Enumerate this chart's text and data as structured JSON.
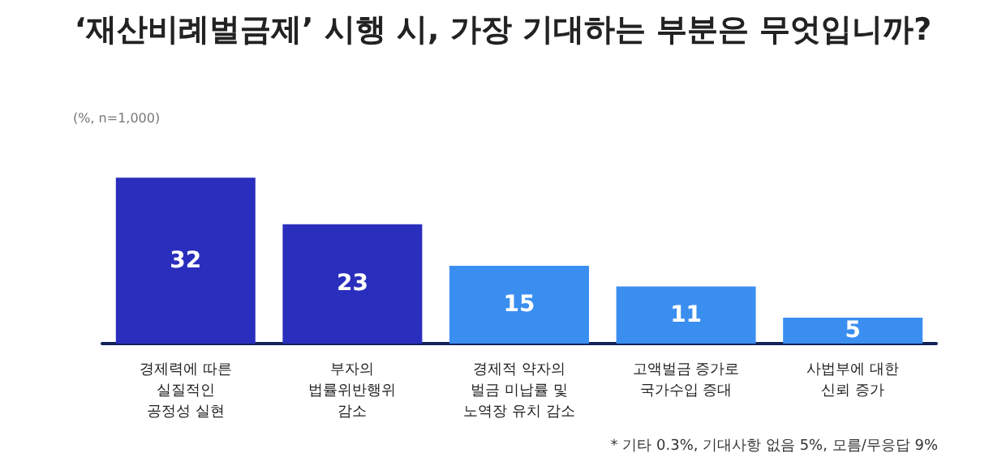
{
  "chart_data": {
    "type": "bar",
    "title": "‘재산비례벌금제’ 시행 시, 가장 기대하는 부분은 무엇입니까?",
    "subtitle": "(%, n=1,000)",
    "categories": [
      "경제력에 따른\n실질적인\n공정성 실현",
      "부자의\n법률위반행위\n감소",
      "경제적 약자의\n벌금 미납률 및\n노역장 유치 감소",
      "고액벌금 증가로\n국가수입 증대",
      "사법부에 대한\n신뢰 증가"
    ],
    "values": [
      32,
      23,
      15,
      11,
      5
    ],
    "colors": [
      "#2a2ebd",
      "#2a2ebd",
      "#3a8ef0",
      "#3a8ef0",
      "#3a8ef0"
    ],
    "data_labels": true,
    "annotations": [
      "* 기타 0.3%, 기대사항 없음 5%, 모름/무응답 9%"
    ]
  }
}
